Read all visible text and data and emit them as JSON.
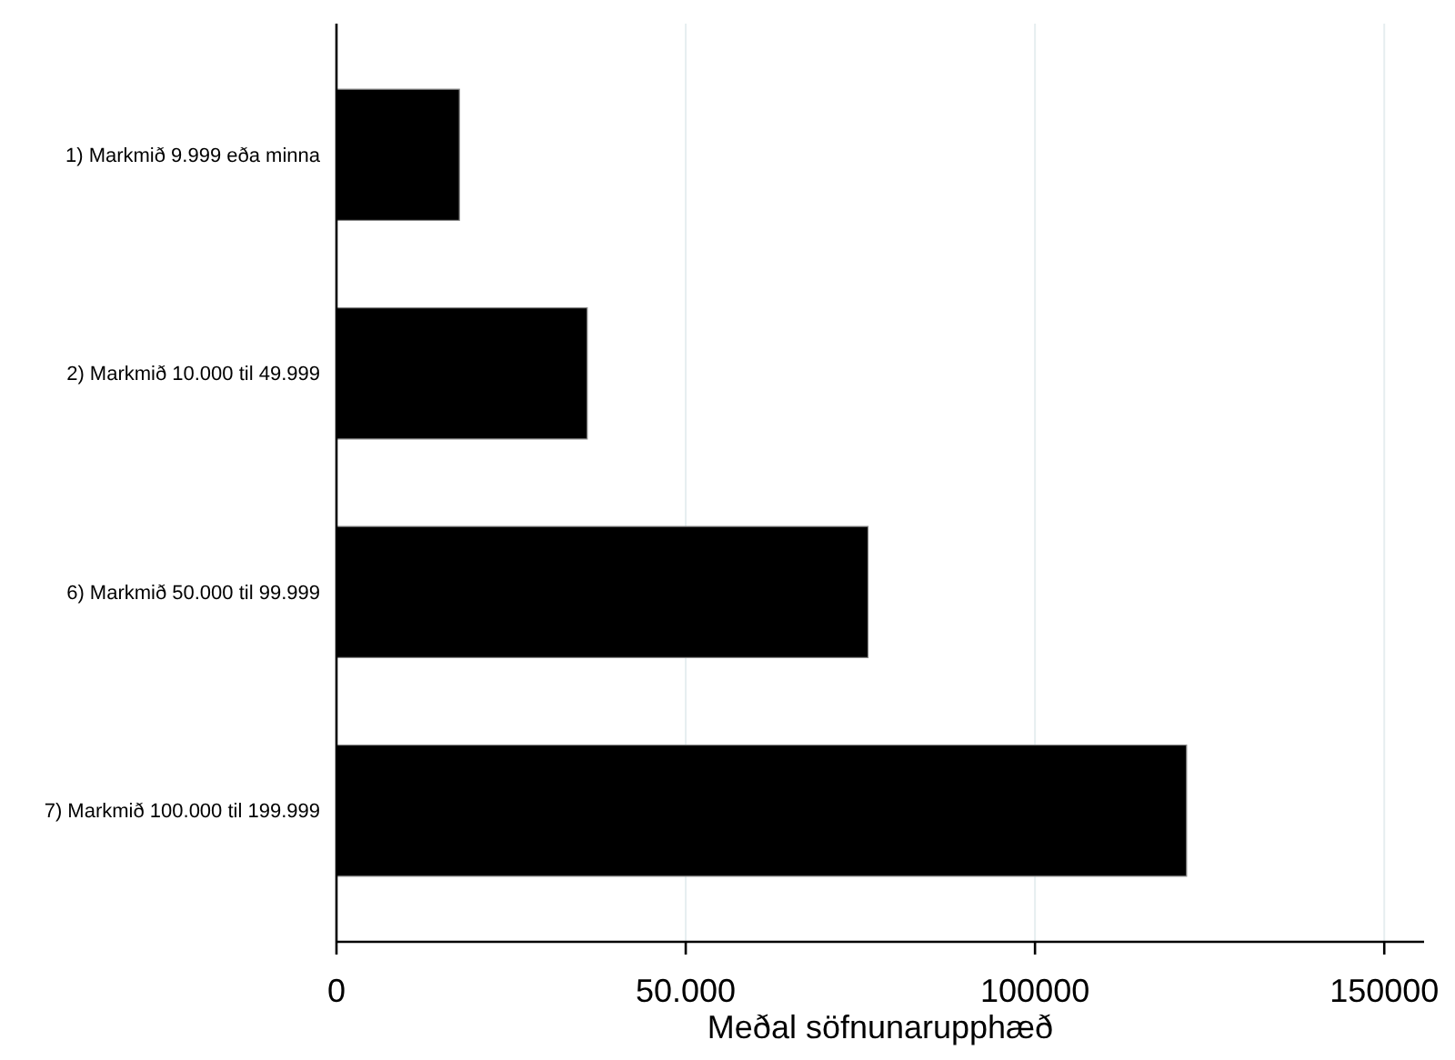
{
  "chart_data": {
    "type": "bar",
    "orientation": "horizontal",
    "xlabel": "Meðal söfnunarupphæð",
    "categories": [
      "1) Markmið 9.999 eða minna",
      "2) Markmið 10.000 til 49.999",
      "6) Markmið 50.000 til 99.999",
      "7) Markmið 100.000 til 199.999"
    ],
    "values": [
      17600,
      35900,
      76100,
      121700
    ],
    "color": "#000000",
    "xlim": [
      0,
      155700
    ],
    "xticks": [
      0,
      {
        "value": 50000,
        "label": "50.000"
      },
      100000,
      150000
    ],
    "grid": "x"
  }
}
